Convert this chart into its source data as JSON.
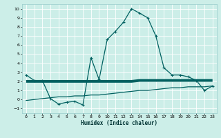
{
  "xlabel": "Humidex (Indice chaleur)",
  "xlim": [
    -0.5,
    23.5
  ],
  "ylim": [
    -1.5,
    10.5
  ],
  "xticks": [
    0,
    1,
    2,
    3,
    4,
    5,
    6,
    7,
    8,
    9,
    10,
    11,
    12,
    13,
    14,
    15,
    16,
    17,
    18,
    19,
    20,
    21,
    22,
    23
  ],
  "yticks": [
    -1,
    0,
    1,
    2,
    3,
    4,
    5,
    6,
    7,
    8,
    9,
    10
  ],
  "bg_color": "#cceee8",
  "grid_color": "#ffffff",
  "line_color": "#006060",
  "line1_x": [
    0,
    1,
    2,
    3,
    4,
    5,
    6,
    7,
    8,
    9,
    10,
    11,
    12,
    13,
    14,
    15,
    16,
    17,
    18,
    19,
    20,
    21,
    22,
    23
  ],
  "line1_y": [
    2.7,
    2.1,
    2.1,
    0.1,
    -0.5,
    -0.3,
    -0.2,
    -0.6,
    4.6,
    2.2,
    6.6,
    7.5,
    8.5,
    10.0,
    9.5,
    9.0,
    7.0,
    3.5,
    2.7,
    2.7,
    2.5,
    2.1,
    1.0,
    1.5
  ],
  "line2_x": [
    0,
    1,
    2,
    3,
    4,
    5,
    6,
    7,
    8,
    9,
    10,
    11,
    12,
    13,
    14,
    15,
    16,
    17,
    18,
    19,
    20,
    21,
    22,
    23
  ],
  "line2_y": [
    2.0,
    2.0,
    2.0,
    2.0,
    2.0,
    2.0,
    2.0,
    2.0,
    2.0,
    2.0,
    2.0,
    2.0,
    2.0,
    2.0,
    2.1,
    2.1,
    2.1,
    2.1,
    2.1,
    2.1,
    2.1,
    2.1,
    2.1,
    2.1
  ],
  "line3_x": [
    0,
    1,
    2,
    3,
    4,
    5,
    6,
    7,
    8,
    9,
    10,
    11,
    12,
    13,
    14,
    15,
    16,
    17,
    18,
    19,
    20,
    21,
    22,
    23
  ],
  "line3_y": [
    -0.1,
    0.0,
    0.1,
    0.2,
    0.3,
    0.3,
    0.4,
    0.4,
    0.5,
    0.5,
    0.6,
    0.7,
    0.8,
    0.9,
    1.0,
    1.0,
    1.1,
    1.2,
    1.3,
    1.3,
    1.4,
    1.4,
    1.4,
    1.5
  ]
}
